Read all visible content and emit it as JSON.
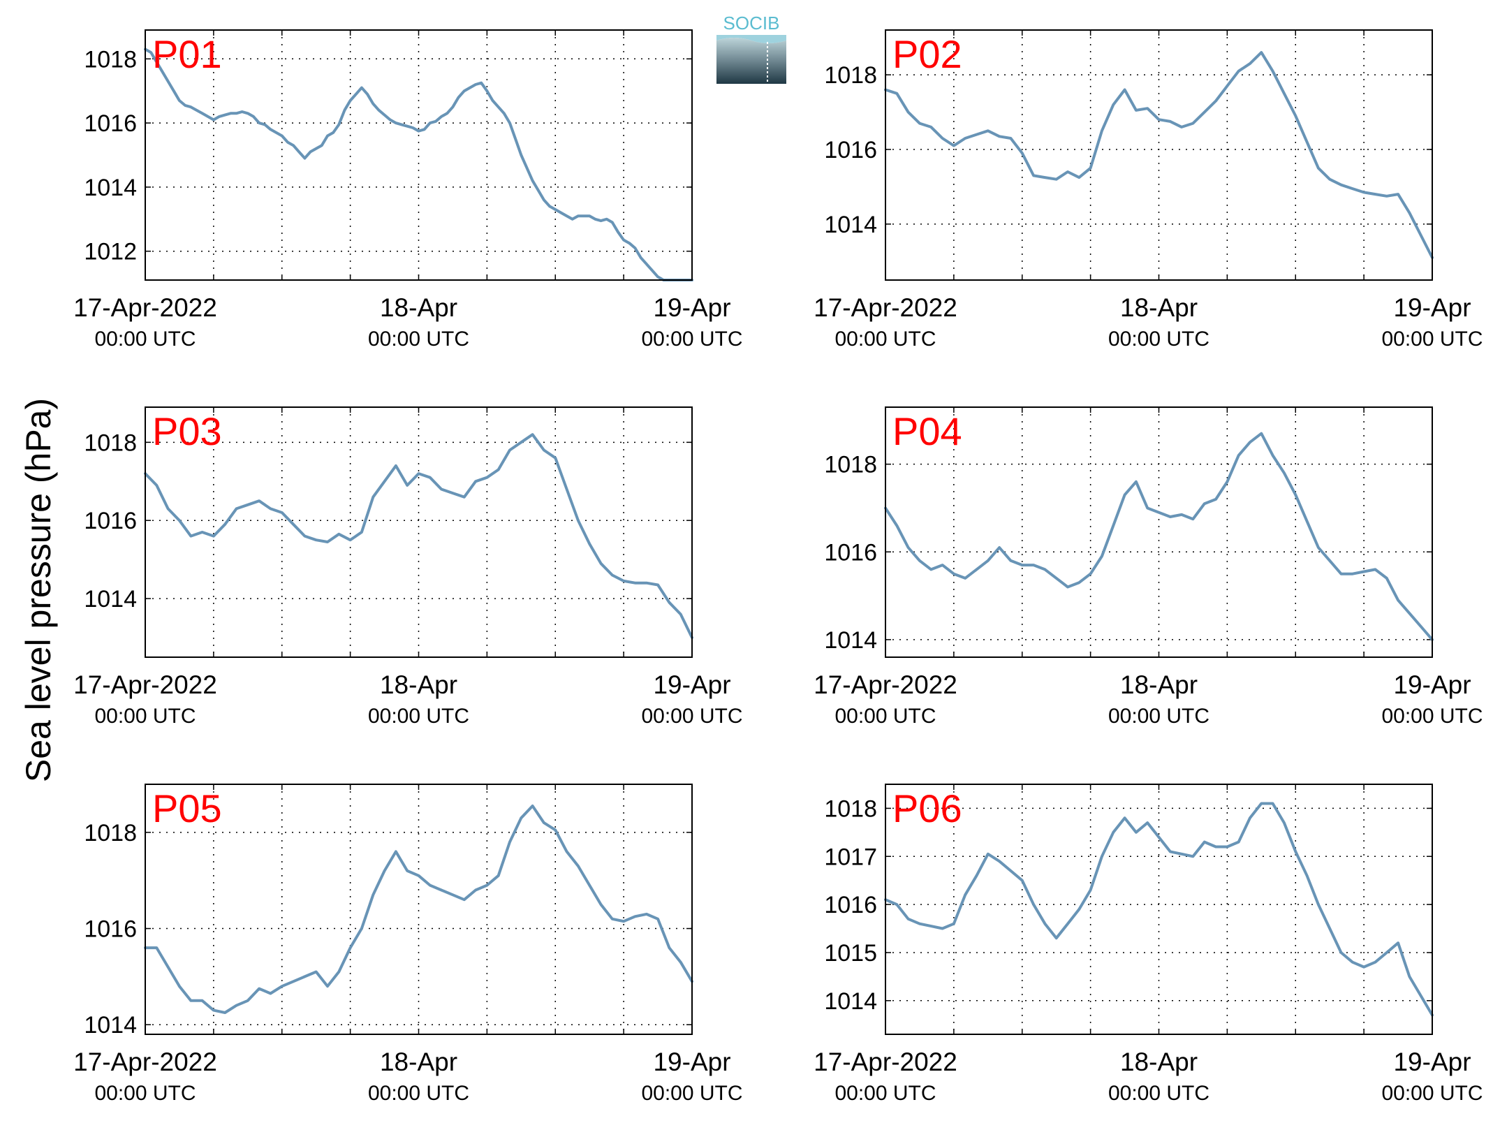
{
  "figure": {
    "ylabel": "Sea level pressure (hPa)",
    "logo_text": "SOCIB",
    "line_color": "#6894b6",
    "label_color": "#ff0000"
  },
  "chart_data": [
    {
      "type": "line",
      "title": "P01",
      "x_ticks": [
        {
          "x": 0,
          "date": "17-Apr-2022",
          "time": "00:00 UTC"
        },
        {
          "x": 24,
          "date": "18-Apr",
          "time": "00:00 UTC"
        },
        {
          "x": 48,
          "date": "19-Apr",
          "time": "00:00 UTC"
        }
      ],
      "xlim": [
        0,
        48
      ],
      "ylim": [
        1011.1,
        1018.9
      ],
      "yticks": [
        1012,
        1014,
        1016,
        1018
      ],
      "series": [
        {
          "x": [
            0,
            0.5,
            1,
            1.5,
            2,
            2.5,
            3,
            3.5,
            4,
            4.5,
            5,
            5.5,
            6,
            6.5,
            7,
            7.5,
            8,
            8.5,
            9,
            9.5,
            10,
            10.5,
            11,
            11.5,
            12,
            12.5,
            13,
            13.5,
            14,
            14.5,
            15,
            15.5,
            16,
            16.5,
            17,
            17.5,
            18,
            18.5,
            19,
            19.5,
            20,
            20.5,
            21,
            21.5,
            22,
            22.5,
            23,
            23.5,
            24,
            24.5,
            25,
            25.5,
            26,
            26.5,
            27,
            27.5,
            28,
            28.5,
            29,
            29.5,
            30,
            30.5,
            31,
            31.5,
            32,
            32.5,
            33,
            33.5,
            34,
            34.5,
            35,
            35.5,
            36,
            36.5,
            37,
            37.5,
            38,
            38.5,
            39,
            39.5,
            40,
            40.5,
            41,
            41.5,
            42,
            42.5,
            43,
            43.5,
            44,
            44.5,
            45,
            45.5,
            46,
            46.5,
            47,
            47.5,
            48
          ],
          "y": [
            1018.3,
            1018.2,
            1017.9,
            1017.6,
            1017.3,
            1017.0,
            1016.7,
            1016.55,
            1016.5,
            1016.4,
            1016.3,
            1016.2,
            1016.1,
            1016.2,
            1016.25,
            1016.3,
            1016.3,
            1016.35,
            1016.3,
            1016.2,
            1016.0,
            1015.95,
            1015.8,
            1015.7,
            1015.6,
            1015.4,
            1015.3,
            1015.1,
            1014.9,
            1015.1,
            1015.2,
            1015.3,
            1015.6,
            1015.7,
            1015.95,
            1016.4,
            1016.7,
            1016.9,
            1017.1,
            1016.9,
            1016.6,
            1016.4,
            1016.25,
            1016.1,
            1016.0,
            1015.95,
            1015.9,
            1015.85,
            1015.75,
            1015.8,
            1016.0,
            1016.05,
            1016.2,
            1016.3,
            1016.5,
            1016.8,
            1017.0,
            1017.1,
            1017.2,
            1017.25,
            1017.0,
            1016.7,
            1016.5,
            1016.3,
            1016.0,
            1015.5,
            1015.0,
            1014.6,
            1014.2,
            1013.9,
            1013.6,
            1013.4,
            1013.3,
            1013.2,
            1013.1,
            1013.0,
            1013.1,
            1013.1,
            1013.1,
            1013.0,
            1012.95,
            1013.0,
            1012.9,
            1012.6,
            1012.35,
            1012.25,
            1012.1,
            1011.8,
            1011.6,
            1011.4,
            1011.2,
            1011.1,
            1011.1,
            1011.1,
            1011.1,
            1011.1,
            1011.1
          ]
        }
      ]
    },
    {
      "type": "line",
      "title": "P02",
      "x_ticks": [
        {
          "x": 0,
          "date": "17-Apr-2022",
          "time": "00:00 UTC"
        },
        {
          "x": 24,
          "date": "18-Apr",
          "time": "00:00 UTC"
        },
        {
          "x": 48,
          "date": "19-Apr",
          "time": "00:00 UTC"
        }
      ],
      "xlim": [
        0,
        48
      ],
      "ylim": [
        1012.5,
        1019.2
      ],
      "yticks": [
        1014,
        1016,
        1018
      ],
      "series": [
        {
          "x": [
            0,
            1,
            2,
            3,
            4,
            5,
            6,
            7,
            8,
            9,
            10,
            11,
            12,
            13,
            14,
            15,
            16,
            17,
            18,
            19,
            20,
            21,
            22,
            23,
            24,
            25,
            26,
            27,
            28,
            29,
            30,
            31,
            32,
            33,
            34,
            35,
            36,
            37,
            38,
            39,
            40,
            41,
            42,
            43,
            44,
            45,
            46,
            47,
            48
          ],
          "y": [
            1017.6,
            1017.5,
            1017.0,
            1016.7,
            1016.6,
            1016.3,
            1016.1,
            1016.3,
            1016.4,
            1016.5,
            1016.35,
            1016.3,
            1015.9,
            1015.3,
            1015.25,
            1015.2,
            1015.4,
            1015.25,
            1015.5,
            1016.5,
            1017.2,
            1017.6,
            1017.05,
            1017.1,
            1016.8,
            1016.75,
            1016.6,
            1016.7,
            1017.0,
            1017.3,
            1017.7,
            1018.1,
            1018.3,
            1018.6,
            1018.1,
            1017.5,
            1016.9,
            1016.2,
            1015.5,
            1015.2,
            1015.05,
            1014.95,
            1014.85,
            1014.8,
            1014.75,
            1014.8,
            1014.3,
            1013.7,
            1013.1
          ]
        }
      ]
    },
    {
      "type": "line",
      "title": "P03",
      "x_ticks": [
        {
          "x": 0,
          "date": "17-Apr-2022",
          "time": "00:00 UTC"
        },
        {
          "x": 24,
          "date": "18-Apr",
          "time": "00:00 UTC"
        },
        {
          "x": 48,
          "date": "19-Apr",
          "time": "00:00 UTC"
        }
      ],
      "xlim": [
        0,
        48
      ],
      "ylim": [
        1012.5,
        1018.9
      ],
      "yticks": [
        1014,
        1016,
        1018
      ],
      "series": [
        {
          "x": [
            0,
            1,
            2,
            3,
            4,
            5,
            6,
            7,
            8,
            9,
            10,
            11,
            12,
            13,
            14,
            15,
            16,
            17,
            18,
            19,
            20,
            21,
            22,
            23,
            24,
            25,
            26,
            27,
            28,
            29,
            30,
            31,
            32,
            33,
            34,
            35,
            36,
            37,
            38,
            39,
            40,
            41,
            42,
            43,
            44,
            45,
            46,
            47,
            48
          ],
          "y": [
            1017.2,
            1016.9,
            1016.3,
            1016.0,
            1015.6,
            1015.7,
            1015.6,
            1015.9,
            1016.3,
            1016.4,
            1016.5,
            1016.3,
            1016.2,
            1015.9,
            1015.6,
            1015.5,
            1015.45,
            1015.65,
            1015.5,
            1015.7,
            1016.6,
            1017.0,
            1017.4,
            1016.9,
            1017.2,
            1017.1,
            1016.8,
            1016.7,
            1016.6,
            1017.0,
            1017.1,
            1017.3,
            1017.8,
            1018.0,
            1018.2,
            1017.8,
            1017.6,
            1016.8,
            1016.0,
            1015.4,
            1014.9,
            1014.6,
            1014.45,
            1014.4,
            1014.4,
            1014.35,
            1013.9,
            1013.6,
            1013.0
          ]
        }
      ]
    },
    {
      "type": "line",
      "title": "P04",
      "x_ticks": [
        {
          "x": 0,
          "date": "17-Apr-2022",
          "time": "00:00 UTC"
        },
        {
          "x": 24,
          "date": "18-Apr",
          "time": "00:00 UTC"
        },
        {
          "x": 48,
          "date": "19-Apr",
          "time": "00:00 UTC"
        }
      ],
      "xlim": [
        0,
        48
      ],
      "ylim": [
        1013.6,
        1019.3
      ],
      "yticks": [
        1014,
        1016,
        1018
      ],
      "series": [
        {
          "x": [
            0,
            1,
            2,
            3,
            4,
            5,
            6,
            7,
            8,
            9,
            10,
            11,
            12,
            13,
            14,
            15,
            16,
            17,
            18,
            19,
            20,
            21,
            22,
            23,
            24,
            25,
            26,
            27,
            28,
            29,
            30,
            31,
            32,
            33,
            34,
            35,
            36,
            37,
            38,
            39,
            40,
            41,
            42,
            43,
            44,
            45,
            46,
            47,
            48
          ],
          "y": [
            1017.0,
            1016.6,
            1016.1,
            1015.8,
            1015.6,
            1015.7,
            1015.5,
            1015.4,
            1015.6,
            1015.8,
            1016.1,
            1015.8,
            1015.7,
            1015.7,
            1015.6,
            1015.4,
            1015.2,
            1015.3,
            1015.5,
            1015.9,
            1016.6,
            1017.3,
            1017.6,
            1017.0,
            1016.9,
            1016.8,
            1016.85,
            1016.75,
            1017.1,
            1017.2,
            1017.6,
            1018.2,
            1018.5,
            1018.7,
            1018.2,
            1017.8,
            1017.3,
            1016.7,
            1016.1,
            1015.8,
            1015.5,
            1015.5,
            1015.55,
            1015.6,
            1015.4,
            1014.9,
            1014.6,
            1014.3,
            1014.0
          ]
        }
      ]
    },
    {
      "type": "line",
      "title": "P05",
      "x_ticks": [
        {
          "x": 0,
          "date": "17-Apr-2022",
          "time": "00:00 UTC"
        },
        {
          "x": 24,
          "date": "18-Apr",
          "time": "00:00 UTC"
        },
        {
          "x": 48,
          "date": "19-Apr",
          "time": "00:00 UTC"
        }
      ],
      "xlim": [
        0,
        48
      ],
      "ylim": [
        1013.8,
        1019.0
      ],
      "yticks": [
        1014,
        1016,
        1018
      ],
      "series": [
        {
          "x": [
            0,
            1,
            2,
            3,
            4,
            5,
            6,
            7,
            8,
            9,
            10,
            11,
            12,
            13,
            14,
            15,
            16,
            17,
            18,
            19,
            20,
            21,
            22,
            23,
            24,
            25,
            26,
            27,
            28,
            29,
            30,
            31,
            32,
            33,
            34,
            35,
            36,
            37,
            38,
            39,
            40,
            41,
            42,
            43,
            44,
            45,
            46,
            47,
            48
          ],
          "y": [
            1015.6,
            1015.6,
            1015.2,
            1014.8,
            1014.5,
            1014.5,
            1014.3,
            1014.25,
            1014.4,
            1014.5,
            1014.75,
            1014.65,
            1014.8,
            1014.9,
            1015.0,
            1015.1,
            1014.8,
            1015.1,
            1015.6,
            1016.0,
            1016.7,
            1017.2,
            1017.6,
            1017.2,
            1017.1,
            1016.9,
            1016.8,
            1016.7,
            1016.6,
            1016.8,
            1016.9,
            1017.1,
            1017.8,
            1018.3,
            1018.55,
            1018.2,
            1018.05,
            1017.6,
            1017.3,
            1016.9,
            1016.5,
            1016.2,
            1016.15,
            1016.25,
            1016.3,
            1016.2,
            1015.6,
            1015.3,
            1014.9
          ]
        }
      ]
    },
    {
      "type": "line",
      "title": "P06",
      "x_ticks": [
        {
          "x": 0,
          "date": "17-Apr-2022",
          "time": "00:00 UTC"
        },
        {
          "x": 24,
          "date": "18-Apr",
          "time": "00:00 UTC"
        },
        {
          "x": 48,
          "date": "19-Apr",
          "time": "00:00 UTC"
        }
      ],
      "xlim": [
        0,
        48
      ],
      "ylim": [
        1013.3,
        1018.5
      ],
      "yticks": [
        1014,
        1015,
        1016,
        1017,
        1018
      ],
      "series": [
        {
          "x": [
            0,
            1,
            2,
            3,
            4,
            5,
            6,
            7,
            8,
            9,
            10,
            11,
            12,
            13,
            14,
            15,
            16,
            17,
            18,
            19,
            20,
            21,
            22,
            23,
            24,
            25,
            26,
            27,
            28,
            29,
            30,
            31,
            32,
            33,
            34,
            35,
            36,
            37,
            38,
            39,
            40,
            41,
            42,
            43,
            44,
            45,
            46,
            47,
            48
          ],
          "y": [
            1016.1,
            1016.0,
            1015.7,
            1015.6,
            1015.55,
            1015.5,
            1015.6,
            1016.2,
            1016.6,
            1017.05,
            1016.9,
            1016.7,
            1016.5,
            1016.0,
            1015.6,
            1015.3,
            1015.6,
            1015.9,
            1016.3,
            1017.0,
            1017.5,
            1017.8,
            1017.5,
            1017.7,
            1017.4,
            1017.1,
            1017.05,
            1017.0,
            1017.3,
            1017.2,
            1017.2,
            1017.3,
            1017.8,
            1018.1,
            1018.1,
            1017.7,
            1017.1,
            1016.6,
            1016.0,
            1015.5,
            1015.0,
            1014.8,
            1014.7,
            1014.8,
            1015.0,
            1015.2,
            1014.5,
            1014.1,
            1013.7
          ]
        }
      ]
    }
  ]
}
